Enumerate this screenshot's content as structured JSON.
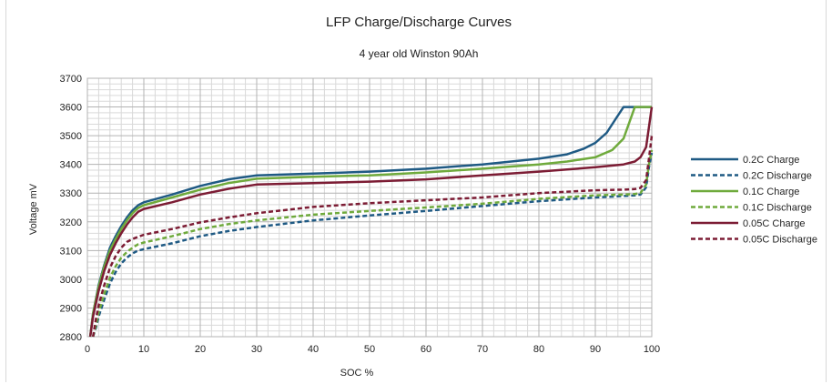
{
  "chart_data": {
    "type": "line",
    "title": "LFP Charge/Discharge Curves",
    "subtitle": "4 year old Winston 90Ah",
    "xlabel": "SOC %",
    "ylabel": "Voltage mV",
    "xlim": [
      0,
      100
    ],
    "ylim": [
      2800,
      3700
    ],
    "x_ticks": [
      0,
      10,
      20,
      30,
      40,
      50,
      60,
      70,
      80,
      90,
      100
    ],
    "y_ticks": [
      2800,
      2900,
      3000,
      3100,
      3200,
      3300,
      3400,
      3500,
      3600,
      3700
    ],
    "x_tick_labels": [
      "0",
      "10",
      "20",
      "30",
      "40",
      "50",
      "60",
      "70",
      "80",
      "90",
      "100"
    ],
    "y_tick_labels": [
      "2800",
      "2900",
      "3000",
      "3100",
      "3200",
      "3300",
      "3400",
      "3500",
      "3600",
      "3700"
    ],
    "grid": true,
    "legend_position": "right",
    "series": [
      {
        "name": "0.2C Charge",
        "color": "#1f5a84",
        "dash": "solid",
        "x": [
          0.5,
          1,
          2,
          3,
          4,
          5,
          6,
          7,
          8,
          9,
          10,
          15,
          20,
          25,
          30,
          40,
          50,
          60,
          70,
          80,
          85,
          88,
          90,
          92,
          94,
          95,
          96,
          98,
          100
        ],
        "y": [
          2800,
          2880,
          2980,
          3050,
          3110,
          3150,
          3185,
          3215,
          3240,
          3258,
          3268,
          3295,
          3325,
          3348,
          3362,
          3368,
          3375,
          3385,
          3400,
          3420,
          3435,
          3455,
          3475,
          3510,
          3570,
          3600,
          3600,
          3600,
          3600
        ]
      },
      {
        "name": "0.2C Discharge",
        "color": "#1f5a84",
        "dash": "dashed",
        "x": [
          1,
          1.5,
          2,
          3,
          4,
          5,
          6,
          7,
          8,
          9,
          10,
          15,
          20,
          25,
          30,
          40,
          50,
          60,
          70,
          80,
          90,
          95,
          97,
          98,
          99,
          99.5,
          100
        ],
        "y": [
          2800,
          2830,
          2870,
          2930,
          2985,
          3025,
          3055,
          3075,
          3090,
          3100,
          3105,
          3125,
          3150,
          3168,
          3182,
          3205,
          3222,
          3238,
          3255,
          3272,
          3285,
          3290,
          3292,
          3295,
          3320,
          3390,
          3440
        ]
      },
      {
        "name": "0.1C Charge",
        "color": "#6faa3c",
        "dash": "solid",
        "x": [
          0.5,
          1,
          2,
          3,
          4,
          5,
          6,
          7,
          8,
          9,
          10,
          15,
          20,
          25,
          30,
          40,
          50,
          60,
          70,
          80,
          85,
          90,
          93,
          95,
          97,
          98,
          100
        ],
        "y": [
          2800,
          2880,
          2975,
          3045,
          3100,
          3140,
          3175,
          3205,
          3230,
          3248,
          3258,
          3285,
          3312,
          3335,
          3350,
          3357,
          3362,
          3372,
          3385,
          3400,
          3410,
          3425,
          3450,
          3490,
          3600,
          3600,
          3600
        ]
      },
      {
        "name": "0.1C Discharge",
        "color": "#6faa3c",
        "dash": "dashed",
        "x": [
          1,
          1.5,
          2,
          3,
          4,
          5,
          6,
          7,
          8,
          9,
          10,
          15,
          20,
          25,
          30,
          40,
          50,
          60,
          70,
          80,
          90,
          95,
          97,
          98,
          99,
          99.5,
          100
        ],
        "y": [
          2800,
          2840,
          2885,
          2950,
          3005,
          3045,
          3075,
          3095,
          3110,
          3122,
          3128,
          3150,
          3175,
          3192,
          3205,
          3225,
          3238,
          3250,
          3263,
          3280,
          3292,
          3295,
          3297,
          3300,
          3330,
          3400,
          3450
        ]
      },
      {
        "name": "0.05C Charge",
        "color": "#7c1c34",
        "dash": "solid",
        "x": [
          0.5,
          1,
          2,
          3,
          4,
          5,
          6,
          7,
          8,
          9,
          10,
          15,
          20,
          25,
          30,
          40,
          50,
          60,
          70,
          80,
          90,
          95,
          97,
          98,
          99,
          100
        ],
        "y": [
          2800,
          2870,
          2960,
          3030,
          3085,
          3125,
          3160,
          3190,
          3215,
          3235,
          3245,
          3268,
          3295,
          3315,
          3330,
          3335,
          3340,
          3348,
          3362,
          3375,
          3390,
          3400,
          3410,
          3425,
          3460,
          3600
        ]
      },
      {
        "name": "0.05C Discharge",
        "color": "#7c1c34",
        "dash": "dashed",
        "x": [
          1,
          1.5,
          2,
          3,
          4,
          5,
          6,
          7,
          8,
          9,
          10,
          15,
          20,
          25,
          30,
          40,
          50,
          60,
          70,
          80,
          90,
          95,
          97,
          98,
          99,
          99.5,
          100
        ],
        "y": [
          2800,
          2860,
          2910,
          2980,
          3040,
          3080,
          3110,
          3130,
          3140,
          3148,
          3155,
          3175,
          3198,
          3215,
          3230,
          3252,
          3265,
          3275,
          3285,
          3300,
          3310,
          3312,
          3314,
          3318,
          3345,
          3420,
          3500
        ]
      }
    ]
  }
}
